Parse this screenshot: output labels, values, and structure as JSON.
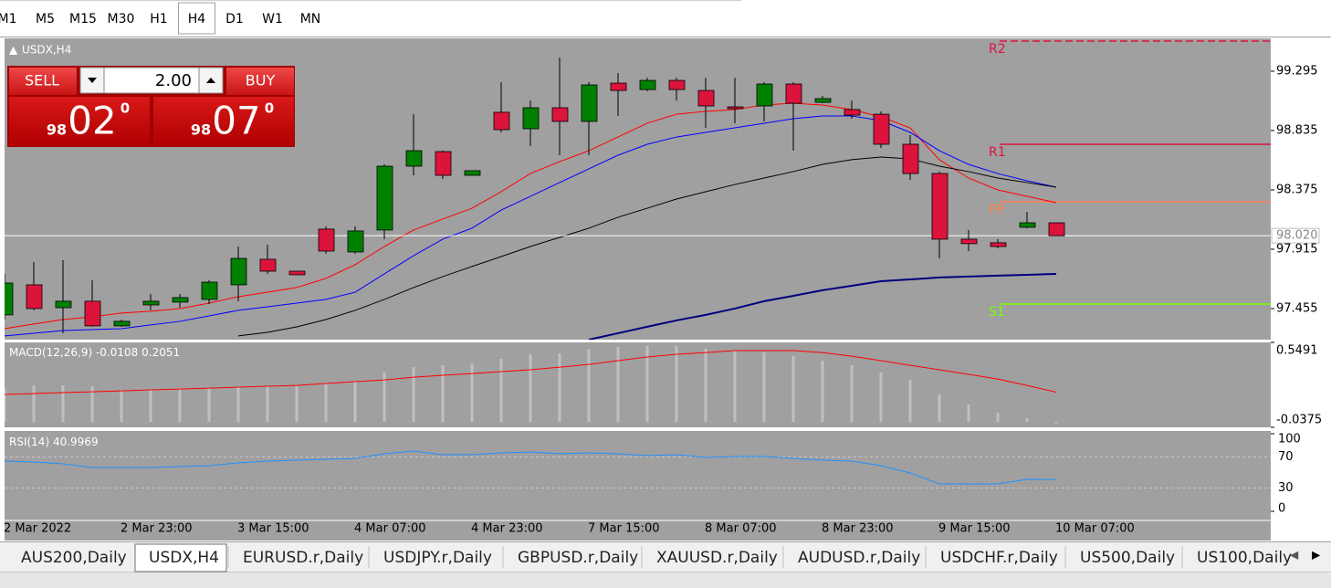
{
  "toolbar": {
    "timeframes": [
      "M1",
      "M5",
      "M15",
      "M30",
      "H1",
      "H4",
      "D1",
      "W1",
      "MN"
    ],
    "active": 5
  },
  "trade_panel": {
    "sell": "SELL",
    "buy": "BUY",
    "lots": "2.00",
    "bid": {
      "big": "98",
      "pips": "02",
      "frac": "0"
    },
    "ask": {
      "big": "98",
      "pips": "07",
      "frac": "0"
    }
  },
  "chart_data": [
    {
      "type": "candlestick",
      "title": "USDX,H4",
      "categories": [
        "2 Mar 2022",
        null,
        null,
        null,
        "2 Mar 23:00",
        null,
        null,
        null,
        "3 Mar 15:00",
        null,
        null,
        null,
        "4 Mar 07:00",
        null,
        null,
        null,
        "4 Mar 23:00",
        null,
        null,
        null,
        "7 Mar 15:00",
        null,
        null,
        null,
        "8 Mar 07:00",
        null,
        null,
        null,
        "8 Mar 23:00",
        null,
        null,
        null,
        "9 Mar 15:00",
        null,
        null,
        null,
        "10 Mar 07:00"
      ],
      "open": [
        97.406,
        97.639,
        97.462,
        97.512,
        97.321,
        97.483,
        97.505,
        97.526,
        97.639,
        97.837,
        97.745,
        98.071,
        97.894,
        98.064,
        98.559,
        98.672,
        98.488,
        98.977,
        98.849,
        99.012,
        98.906,
        99.203,
        99.153,
        99.224,
        99.146,
        99.019,
        99.026,
        99.196,
        99.054,
        98.998,
        98.962,
        98.729,
        98.502,
        97.993,
        97.965,
        98.085,
        98.12
      ],
      "high": [
        97.724,
        97.816,
        97.83,
        97.674,
        97.37,
        97.568,
        97.568,
        97.674,
        97.936,
        97.95,
        97.745,
        98.092,
        98.092,
        98.573,
        98.962,
        98.679,
        98.524,
        99.21,
        99.069,
        99.401,
        99.21,
        99.281,
        99.245,
        99.245,
        99.245,
        99.245,
        99.21,
        99.21,
        99.104,
        99.069,
        98.984,
        98.8,
        98.517,
        98.064,
        97.993,
        98.205,
        98.12
      ],
      "low": [
        97.37,
        97.441,
        97.264,
        97.314,
        97.314,
        97.441,
        97.462,
        97.49,
        97.512,
        97.724,
        97.717,
        97.88,
        97.88,
        97.993,
        98.488,
        98.46,
        98.488,
        98.821,
        98.715,
        98.644,
        98.644,
        98.948,
        99.139,
        99.069,
        98.856,
        98.892,
        98.906,
        98.679,
        99.047,
        98.927,
        98.7,
        98.453,
        97.844,
        97.901,
        97.922,
        98.078,
        98.02
      ],
      "close": [
        97.653,
        97.455,
        97.512,
        97.321,
        97.356,
        97.512,
        97.54,
        97.66,
        97.844,
        97.745,
        97.717,
        97.901,
        98.057,
        98.559,
        98.679,
        98.488,
        98.524,
        98.842,
        99.012,
        98.906,
        99.189,
        99.146,
        99.224,
        99.153,
        99.026,
        99.005,
        99.196,
        99.047,
        99.083,
        98.955,
        98.729,
        98.502,
        97.993,
        97.958,
        97.936,
        98.12,
        98.02
      ],
      "up_color": "#008000",
      "down_color": "#dc143c",
      "series": [
        {
          "color": "#ff0000",
          "values": [
            97.299,
            97.335,
            97.37,
            97.391,
            97.42,
            97.434,
            97.455,
            97.497,
            97.547,
            97.582,
            97.618,
            97.689,
            97.795,
            97.936,
            98.064,
            98.149,
            98.233,
            98.361,
            98.502,
            98.594,
            98.679,
            98.785,
            98.892,
            98.962,
            98.984,
            98.998,
            99.033,
            99.047,
            99.033,
            98.998,
            98.941,
            98.856,
            98.609,
            98.467,
            98.375,
            98.325,
            98.276
          ]
        },
        {
          "color": "#0000ff",
          "values": [
            97.243,
            97.264,
            97.285,
            97.292,
            97.299,
            97.328,
            97.356,
            97.398,
            97.441,
            97.469,
            97.497,
            97.526,
            97.582,
            97.724,
            97.865,
            97.993,
            98.078,
            98.219,
            98.325,
            98.432,
            98.538,
            98.644,
            98.729,
            98.785,
            98.821,
            98.856,
            98.892,
            98.927,
            98.948,
            98.948,
            98.913,
            98.821,
            98.679,
            98.573,
            98.502,
            98.446,
            98.396
          ]
        },
        {
          "color": "#000000",
          "values": [
            null,
            null,
            null,
            null,
            null,
            null,
            null,
            null,
            97.243,
            97.271,
            97.313,
            97.37,
            97.441,
            97.526,
            97.618,
            97.703,
            97.781,
            97.858,
            97.936,
            98.007,
            98.078,
            98.163,
            98.233,
            98.304,
            98.361,
            98.417,
            98.467,
            98.517,
            98.573,
            98.609,
            98.63,
            98.616,
            98.559,
            98.517,
            98.467,
            98.432,
            98.396
          ]
        },
        {
          "color": "#000080",
          "values": [
            null,
            null,
            null,
            null,
            null,
            null,
            null,
            null,
            null,
            null,
            null,
            null,
            null,
            null,
            null,
            null,
            null,
            null,
            null,
            null,
            97.214,
            97.264,
            97.314,
            97.363,
            97.406,
            97.455,
            97.512,
            97.554,
            97.597,
            97.632,
            97.667,
            97.681,
            97.696,
            97.703,
            97.71,
            97.717,
            97.724
          ]
        }
      ],
      "levels": [
        {
          "name": "R2",
          "value": 99.529,
          "color": "#dc143c",
          "dashed": true
        },
        {
          "name": "R1",
          "value": 98.729,
          "color": "#dc143c",
          "dashed": false
        },
        {
          "name": "PP",
          "value": 98.283,
          "color": "#ff7f50",
          "dashed": false
        },
        {
          "name": "S1",
          "value": 97.49,
          "color": "#7cfc00",
          "dashed": false
        }
      ],
      "current_price": {
        "value": 98.02,
        "label": "98.020"
      },
      "ylim": [
        97.214,
        99.55
      ],
      "yticks": [
        99.295,
        98.835,
        98.375,
        97.915,
        97.455
      ]
    },
    {
      "type": "macd",
      "title": "MACD(12,26,9)",
      "values": [
        0.233,
        0.252,
        0.252,
        0.246,
        0.221,
        0.221,
        0.233,
        0.233,
        0.246,
        0.246,
        0.246,
        0.265,
        0.284,
        0.341,
        0.378,
        0.391,
        0.404,
        0.435,
        0.467,
        0.473,
        0.505,
        0.517,
        0.524,
        0.524,
        0.505,
        0.492,
        0.479,
        0.454,
        0.423,
        0.391,
        0.341,
        0.29,
        0.189,
        0.12,
        0.063,
        0.025,
        -0.0108
      ],
      "color": "#c0c0c0",
      "series": [
        {
          "color": "#ff0000",
          "values": [
            0.189,
            0.196,
            0.202,
            0.208,
            0.214,
            0.221,
            0.227,
            0.233,
            0.24,
            0.246,
            0.252,
            0.265,
            0.278,
            0.29,
            0.309,
            0.322,
            0.334,
            0.347,
            0.36,
            0.378,
            0.397,
            0.423,
            0.448,
            0.467,
            0.479,
            0.492,
            0.492,
            0.492,
            0.479,
            0.454,
            0.423,
            0.391,
            0.36,
            0.328,
            0.296,
            0.252,
            0.2051
          ]
        }
      ],
      "ylim": [
        -0.0375,
        0.5491
      ],
      "yticks": [
        0.5491,
        -0.0375
      ]
    },
    {
      "type": "line",
      "title": "RSI(14)",
      "values": [
        64.7,
        63.5,
        61.2,
        56.5,
        56.5,
        56.5,
        57.6,
        58.8,
        62.4,
        64.7,
        65.9,
        67.1,
        68.2,
        74.1,
        77.6,
        72.9,
        72.9,
        75.3,
        76.5,
        74.1,
        75.3,
        74.1,
        71.8,
        72.9,
        69.4,
        70.6,
        70.6,
        68.2,
        65.9,
        64.7,
        58.8,
        49.4,
        35.3,
        35.3,
        35.3,
        41.2,
        40.9969
      ],
      "color": "#1e90ff",
      "ylim": [
        0,
        100
      ],
      "yticks": [
        100,
        70,
        30,
        0
      ]
    }
  ],
  "tabs": {
    "items": [
      "AUS200,Daily",
      "USDX,H4",
      "EURUSD.r,Daily",
      "USDJPY.r,Daily",
      "GBPUSD.r,Daily",
      "XAUUSD.r,Daily",
      "AUDUSD.r,Daily",
      "USDCHF.r,Daily",
      "US500,Daily",
      "US100,Daily"
    ],
    "active": 1
  }
}
